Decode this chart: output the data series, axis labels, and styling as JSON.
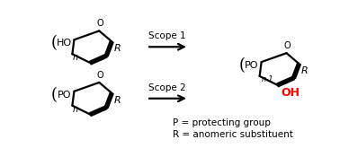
{
  "bg_color": "#ffffff",
  "text_color": "#000000",
  "red_color": "#ff0000",
  "scope1_label": "Scope 1",
  "scope2_label": "Scope 2",
  "legend1": "P = protecting group",
  "legend2": "R = anomeric substituent",
  "fig_width": 3.78,
  "fig_height": 1.65,
  "dpi": 100
}
